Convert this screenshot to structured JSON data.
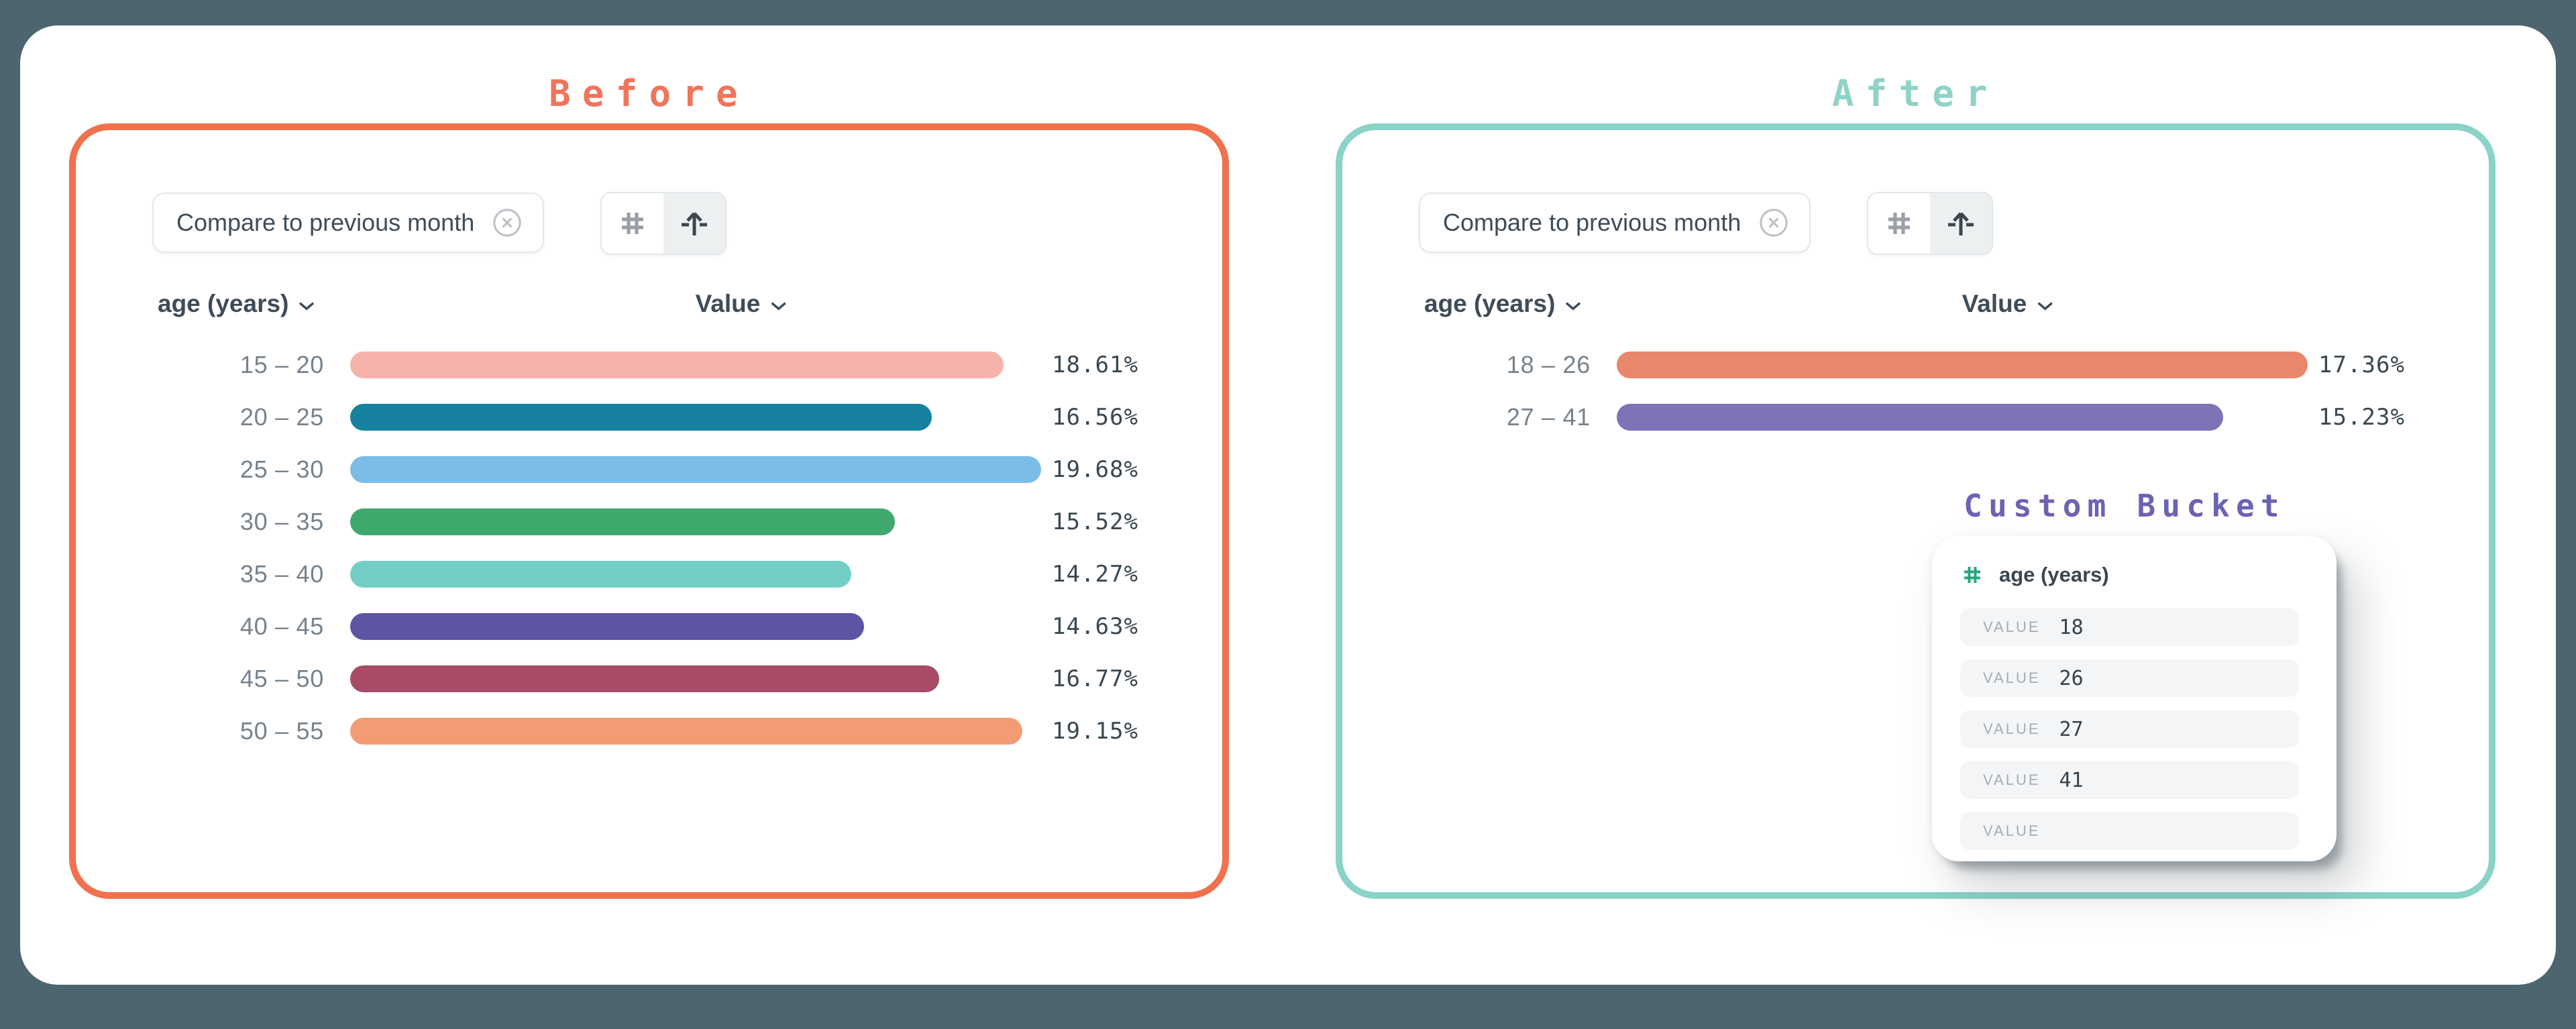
{
  "page": {
    "background": "#4C656E",
    "card_background": "#FFFFFF"
  },
  "panels": {
    "before": {
      "title": "Before",
      "accent": "#F0755C",
      "border": "#F0714E",
      "filter_chip": "Compare to previous month",
      "dimension_header": "age (years)",
      "value_header": "Value",
      "toggle_icons": [
        "hash-icon",
        "bucket-arrow-icon"
      ],
      "active_toggle": "bucket-arrow-icon"
    },
    "after": {
      "title": "After",
      "accent": "#8FD2C7",
      "border": "#8BD2C8",
      "filter_chip": "Compare to previous month",
      "dimension_header": "age (years)",
      "value_header": "Value",
      "toggle_icons": [
        "hash-icon",
        "bucket-arrow-icon"
      ],
      "active_toggle": "bucket-arrow-icon"
    }
  },
  "custom_bucket": {
    "title": "Custom Bucket",
    "accent": "#6B63B3",
    "field": "age (years)",
    "field_icon": "hash-icon",
    "field_icon_color": "#27A779",
    "value_label": "VALUE",
    "values": [
      "18",
      "26",
      "27",
      "41",
      ""
    ]
  },
  "chart_data": [
    {
      "type": "bar",
      "orientation": "horizontal",
      "title": "Before",
      "dimension": "age (years)",
      "measure": "Value",
      "categories": [
        "15 – 20",
        "20 – 25",
        "25 – 30",
        "30 – 35",
        "35 – 40",
        "40 – 45",
        "45 – 50",
        "50 – 55"
      ],
      "values": [
        18.61,
        16.56,
        19.68,
        15.52,
        14.27,
        14.63,
        16.77,
        19.15
      ],
      "labels": [
        "18.61%",
        "16.56%",
        "19.68%",
        "15.52%",
        "14.27%",
        "14.63%",
        "16.77%",
        "19.15%"
      ],
      "colors": [
        "#F7B3AB",
        "#16809F",
        "#7CBDE8",
        "#3FA86C",
        "#73CFC5",
        "#5C55A5",
        "#A74B67",
        "#F39C73"
      ],
      "xlim": [
        0,
        19.68
      ],
      "grid": false,
      "legend": false
    },
    {
      "type": "bar",
      "orientation": "horizontal",
      "title": "After",
      "dimension": "age (years)",
      "measure": "Value",
      "categories": [
        "18 – 26",
        "27 – 41"
      ],
      "values": [
        17.36,
        15.23
      ],
      "labels": [
        "17.36%",
        "15.23%"
      ],
      "colors": [
        "#E8876C",
        "#7D73B7"
      ],
      "xlim": [
        0,
        17.36
      ],
      "grid": false,
      "legend": false
    }
  ]
}
